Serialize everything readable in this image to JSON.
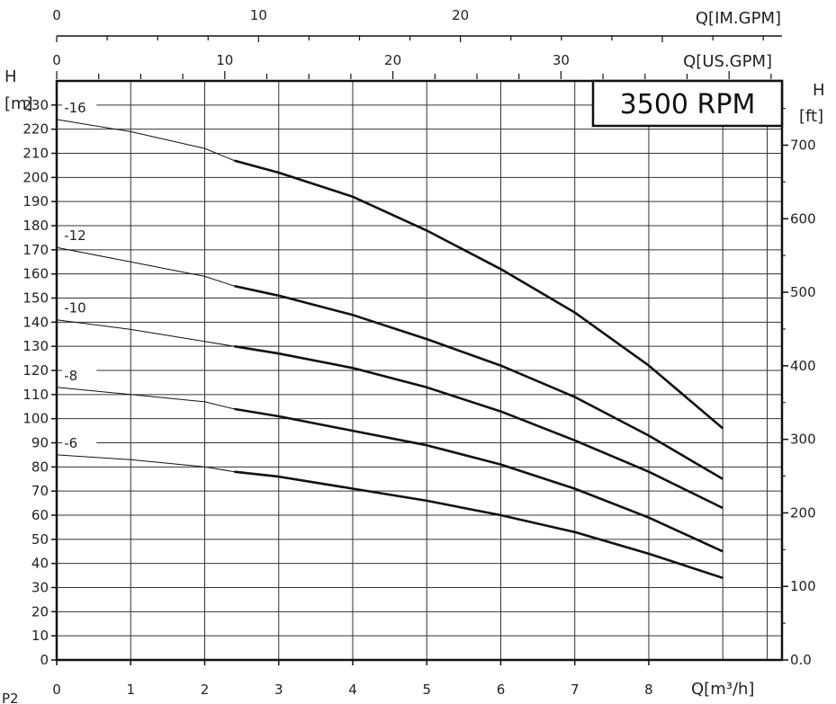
{
  "chart_data": {
    "type": "line",
    "title": "3500 RPM",
    "xlabel": "Q[m³/h]",
    "ylabel_left": "H",
    "ylabel_left_unit": "[m]",
    "ylabel_right": "H",
    "ylabel_right_unit": "[ft]",
    "top_axis_1_label": "Q[IM.GPM]",
    "top_axis_2_label": "Q[US.GPM]",
    "corner_label": "P2",
    "xlim": [
      0,
      9.8
    ],
    "ylim": [
      0,
      240
    ],
    "grid": true,
    "x_ticks": [
      "0",
      "1",
      "2",
      "3",
      "4",
      "5",
      "6",
      "7",
      "8"
    ],
    "y_ticks_left": [
      "0",
      "10",
      "20",
      "30",
      "40",
      "50",
      "60",
      "70",
      "80",
      "90",
      "100",
      "110",
      "120",
      "130",
      "140",
      "150",
      "160",
      "170",
      "180",
      "190",
      "200",
      "210",
      "220",
      "230"
    ],
    "y_ticks_right": [
      {
        "label": "0.0",
        "value_ft": 0
      },
      {
        "label": "100",
        "value_ft": 100
      },
      {
        "label": "200",
        "value_ft": 200
      },
      {
        "label": "300",
        "value_ft": 300
      },
      {
        "label": "400",
        "value_ft": 400
      },
      {
        "label": "500",
        "value_ft": 500
      },
      {
        "label": "600",
        "value_ft": 600
      },
      {
        "label": "700",
        "value_ft": 700
      }
    ],
    "top_ticks_im_gpm": [
      {
        "label": "0",
        "value": 0
      },
      {
        "label": "10",
        "value": 10
      },
      {
        "label": "20",
        "value": 20
      }
    ],
    "top_ticks_us_gpm": [
      {
        "label": "0",
        "value": 0
      },
      {
        "label": "10",
        "value": 10
      },
      {
        "label": "20",
        "value": 20
      },
      {
        "label": "30",
        "value": 30
      }
    ],
    "series": [
      {
        "name": "-16",
        "thin": [
          [
            0,
            224
          ],
          [
            1,
            219
          ],
          [
            2,
            212
          ],
          [
            2.4,
            207
          ]
        ],
        "bold": [
          [
            2.4,
            207
          ],
          [
            3,
            202
          ],
          [
            4,
            192
          ],
          [
            5,
            178
          ],
          [
            6,
            162
          ],
          [
            7,
            144
          ],
          [
            8,
            122
          ],
          [
            9,
            96
          ]
        ]
      },
      {
        "name": "-12",
        "thin": [
          [
            0,
            171
          ],
          [
            1,
            165
          ],
          [
            2,
            159
          ],
          [
            2.4,
            155
          ]
        ],
        "bold": [
          [
            2.4,
            155
          ],
          [
            3,
            151
          ],
          [
            4,
            143
          ],
          [
            5,
            133
          ],
          [
            6,
            122
          ],
          [
            7,
            109
          ],
          [
            8,
            93
          ],
          [
            9,
            75
          ]
        ]
      },
      {
        "name": "-10",
        "thin": [
          [
            0,
            141
          ],
          [
            1,
            137
          ],
          [
            2,
            132
          ],
          [
            2.4,
            130
          ]
        ],
        "bold": [
          [
            2.4,
            130
          ],
          [
            3,
            127
          ],
          [
            4,
            121
          ],
          [
            5,
            113
          ],
          [
            6,
            103
          ],
          [
            7,
            91
          ],
          [
            8,
            78
          ],
          [
            9,
            63
          ]
        ]
      },
      {
        "name": "-8",
        "thin": [
          [
            0,
            113
          ],
          [
            1,
            110
          ],
          [
            2,
            107
          ],
          [
            2.4,
            104
          ]
        ],
        "bold": [
          [
            2.4,
            104
          ],
          [
            3,
            101
          ],
          [
            4,
            95
          ],
          [
            5,
            89
          ],
          [
            6,
            81
          ],
          [
            7,
            71
          ],
          [
            8,
            59
          ],
          [
            9,
            45
          ]
        ]
      },
      {
        "name": "-6",
        "thin": [
          [
            0,
            85
          ],
          [
            1,
            83
          ],
          [
            2,
            80
          ],
          [
            2.4,
            78
          ]
        ],
        "bold": [
          [
            2.4,
            78
          ],
          [
            3,
            76
          ],
          [
            4,
            71
          ],
          [
            5,
            66
          ],
          [
            6,
            60
          ],
          [
            7,
            53
          ],
          [
            8,
            44
          ],
          [
            9,
            34
          ]
        ]
      }
    ]
  }
}
